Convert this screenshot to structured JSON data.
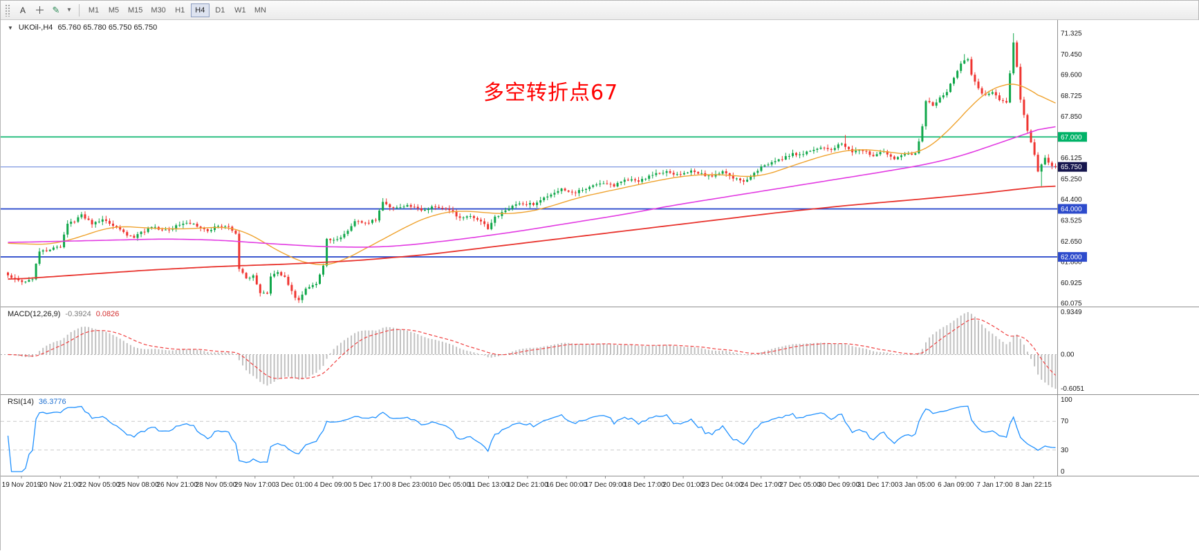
{
  "ui": {
    "toolbar": {
      "cursor_label": "A",
      "timeframes": [
        "M1",
        "M5",
        "M15",
        "M30",
        "H1",
        "H4",
        "D1",
        "W1",
        "MN"
      ],
      "active_timeframe": "H4"
    },
    "titles": {
      "arrow": "▼"
    }
  },
  "chart_data": [
    {
      "type": "candlestick",
      "title": "UKOil-,H4",
      "ohlc_display": "65.760 65.780 65.750 65.750",
      "annotation": {
        "text": "多空转折点67",
        "color": "#ff0000"
      },
      "ylim": [
        59.93,
        71.87
      ],
      "y_ticks": [
        "71.325",
        "70.450",
        "69.600",
        "68.725",
        "67.850",
        "67.000",
        "66.125",
        "65.250",
        "64.400",
        "63.525",
        "62.650",
        "61.800",
        "60.925",
        "60.075"
      ],
      "candle_count": 300,
      "up_color": "#10a74a",
      "down_color": "#ef3430",
      "price_path": [
        [
          0,
          61.35
        ],
        [
          2,
          61.15
        ],
        [
          5,
          60.95
        ],
        [
          8,
          61.1
        ],
        [
          10,
          62.25
        ],
        [
          13,
          62.3
        ],
        [
          16,
          62.45
        ],
        [
          18,
          63.35
        ],
        [
          20,
          63.5
        ],
        [
          22,
          63.75
        ],
        [
          25,
          63.4
        ],
        [
          28,
          63.55
        ],
        [
          31,
          63.3
        ],
        [
          34,
          63.0
        ],
        [
          37,
          62.8
        ],
        [
          39,
          63.0
        ],
        [
          42,
          63.25
        ],
        [
          46,
          63.1
        ],
        [
          49,
          63.3
        ],
        [
          52,
          63.45
        ],
        [
          55,
          63.3
        ],
        [
          58,
          63.1
        ],
        [
          61,
          63.3
        ],
        [
          64,
          63.25
        ],
        [
          66,
          63.0
        ],
        [
          67,
          61.5
        ],
        [
          69,
          61.1
        ],
        [
          71,
          61.25
        ],
        [
          73,
          60.5
        ],
        [
          75,
          60.45
        ],
        [
          76,
          61.2
        ],
        [
          78,
          61.35
        ],
        [
          80,
          61.15
        ],
        [
          83,
          60.3
        ],
        [
          84,
          60.2
        ],
        [
          86,
          60.7
        ],
        [
          89,
          60.9
        ],
        [
          91,
          61.6
        ],
        [
          92,
          62.75
        ],
        [
          95,
          62.7
        ],
        [
          97,
          62.95
        ],
        [
          100,
          63.5
        ],
        [
          103,
          63.4
        ],
        [
          106,
          63.55
        ],
        [
          108,
          64.3
        ],
        [
          111,
          64.0
        ],
        [
          115,
          64.15
        ],
        [
          119,
          63.95
        ],
        [
          123,
          64.1
        ],
        [
          127,
          63.95
        ],
        [
          130,
          63.6
        ],
        [
          133,
          63.7
        ],
        [
          136,
          63.45
        ],
        [
          138,
          63.2
        ],
        [
          140,
          63.65
        ],
        [
          144,
          64.05
        ],
        [
          147,
          64.25
        ],
        [
          151,
          64.2
        ],
        [
          155,
          64.55
        ],
        [
          159,
          64.8
        ],
        [
          163,
          64.7
        ],
        [
          167,
          64.9
        ],
        [
          171,
          65.05
        ],
        [
          174,
          64.95
        ],
        [
          177,
          65.25
        ],
        [
          181,
          65.15
        ],
        [
          185,
          65.45
        ],
        [
          189,
          65.55
        ],
        [
          193,
          65.4
        ],
        [
          196,
          65.6
        ],
        [
          199,
          65.45
        ],
        [
          202,
          65.35
        ],
        [
          205,
          65.55
        ],
        [
          208,
          65.3
        ],
        [
          211,
          65.15
        ],
        [
          213,
          65.35
        ],
        [
          216,
          65.75
        ],
        [
          219,
          65.9
        ],
        [
          222,
          66.1
        ],
        [
          225,
          66.3
        ],
        [
          228,
          66.25
        ],
        [
          230,
          66.45
        ],
        [
          233,
          66.55
        ],
        [
          236,
          66.45
        ],
        [
          239,
          66.75
        ],
        [
          242,
          66.35
        ],
        [
          245,
          66.45
        ],
        [
          248,
          66.2
        ],
        [
          251,
          66.4
        ],
        [
          254,
          66.1
        ],
        [
          257,
          66.25
        ],
        [
          260,
          66.3
        ],
        [
          262,
          67.4
        ],
        [
          263,
          68.5
        ],
        [
          265,
          68.35
        ],
        [
          267,
          68.6
        ],
        [
          269,
          68.9
        ],
        [
          271,
          69.5
        ],
        [
          273,
          70.1
        ],
        [
          275,
          70.2
        ],
        [
          276,
          69.6
        ],
        [
          278,
          69.0
        ],
        [
          280,
          68.7
        ],
        [
          282,
          68.9
        ],
        [
          284,
          68.5
        ],
        [
          286,
          68.4
        ],
        [
          288,
          70.9
        ],
        [
          289,
          69.9
        ],
        [
          290,
          68.6
        ],
        [
          292,
          67.3
        ],
        [
          294,
          66.3
        ],
        [
          295,
          65.6
        ],
        [
          297,
          66.1
        ],
        [
          298,
          65.9
        ],
        [
          300,
          65.75
        ]
      ],
      "forced_extremes": {
        "84": {
          "l": 60.08
        },
        "107": {
          "h": 64.45
        },
        "239": {
          "h": 67.08
        },
        "273": {
          "h": 70.45
        },
        "287": {
          "h": 71.32
        },
        "295": {
          "l": 64.95
        }
      },
      "moving_averages": [
        {
          "name": "fast-orange",
          "color": "#efa22d",
          "width": 1.4,
          "path": [
            [
              0,
              62.6
            ],
            [
              8,
              62.5
            ],
            [
              14,
              62.55
            ],
            [
              22,
              62.9
            ],
            [
              30,
              63.3
            ],
            [
              40,
              63.2
            ],
            [
              50,
              63.15
            ],
            [
              60,
              63.25
            ],
            [
              66,
              63.2
            ],
            [
              72,
              62.7
            ],
            [
              80,
              62.0
            ],
            [
              88,
              61.6
            ],
            [
              94,
              61.7
            ],
            [
              100,
              62.2
            ],
            [
              108,
              62.8
            ],
            [
              114,
              63.3
            ],
            [
              122,
              63.8
            ],
            [
              130,
              63.95
            ],
            [
              138,
              63.8
            ],
            [
              146,
              63.8
            ],
            [
              154,
              64.05
            ],
            [
              162,
              64.45
            ],
            [
              170,
              64.7
            ],
            [
              178,
              64.95
            ],
            [
              186,
              65.2
            ],
            [
              194,
              65.4
            ],
            [
              202,
              65.45
            ],
            [
              210,
              65.35
            ],
            [
              214,
              65.3
            ],
            [
              220,
              65.6
            ],
            [
              228,
              66.0
            ],
            [
              236,
              66.35
            ],
            [
              242,
              66.5
            ],
            [
              248,
              66.45
            ],
            [
              254,
              66.3
            ],
            [
              260,
              66.25
            ],
            [
              266,
              66.9
            ],
            [
              272,
              67.8
            ],
            [
              278,
              68.8
            ],
            [
              282,
              69.15
            ],
            [
              286,
              69.2
            ],
            [
              290,
              69.3
            ],
            [
              293,
              68.9
            ],
            [
              296,
              68.4
            ],
            [
              300,
              68.1
            ]
          ]
        },
        {
          "name": "medium-magenta",
          "color": "#e23ae2",
          "width": 1.6,
          "path": [
            [
              0,
              62.6
            ],
            [
              15,
              62.65
            ],
            [
              30,
              62.7
            ],
            [
              45,
              62.75
            ],
            [
              60,
              62.7
            ],
            [
              75,
              62.55
            ],
            [
              90,
              62.42
            ],
            [
              105,
              62.4
            ],
            [
              115,
              62.5
            ],
            [
              130,
              62.75
            ],
            [
              145,
              63.05
            ],
            [
              160,
              63.4
            ],
            [
              175,
              63.75
            ],
            [
              190,
              64.15
            ],
            [
              205,
              64.5
            ],
            [
              220,
              64.85
            ],
            [
              235,
              65.2
            ],
            [
              250,
              65.55
            ],
            [
              262,
              65.85
            ],
            [
              272,
              66.2
            ],
            [
              282,
              66.7
            ],
            [
              292,
              67.2
            ],
            [
              300,
              67.6
            ]
          ]
        },
        {
          "name": "slow-red",
          "color": "#e8322c",
          "width": 1.8,
          "path": [
            [
              0,
              61.05
            ],
            [
              20,
              61.25
            ],
            [
              40,
              61.45
            ],
            [
              60,
              61.6
            ],
            [
              80,
              61.7
            ],
            [
              100,
              61.85
            ],
            [
              120,
              62.1
            ],
            [
              140,
              62.45
            ],
            [
              160,
              62.8
            ],
            [
              180,
              63.15
            ],
            [
              200,
              63.5
            ],
            [
              220,
              63.85
            ],
            [
              240,
              64.15
            ],
            [
              260,
              64.4
            ],
            [
              275,
              64.6
            ],
            [
              290,
              64.85
            ],
            [
              300,
              65.0
            ]
          ]
        }
      ],
      "horizontal_lines": [
        {
          "price": 67.0,
          "label": "67.000",
          "line_color": "#00b267",
          "badge_color": "#00b267",
          "width": 1.6
        },
        {
          "price": 65.75,
          "label": "65.750",
          "line_color": "#5b7dd8",
          "badge_color": "#16164e",
          "width": 1
        },
        {
          "price": 64.0,
          "label": "64.000",
          "line_color": "#2d4bcc",
          "badge_color": "#2d4bcc",
          "width": 1.8
        },
        {
          "price": 62.0,
          "label": "62.000",
          "line_color": "#2d4bcc",
          "badge_color": "#2d4bcc",
          "width": 1.8
        }
      ],
      "x_labels": [
        "19 Nov 2019",
        "20 Nov 21:00",
        "22 Nov 05:00",
        "25 Nov 08:00",
        "26 Nov 21:00",
        "28 Nov 05:00",
        "29 Nov 17:00",
        "3 Dec 01:00",
        "4 Dec 09:00",
        "5 Dec 17:00",
        "8 Dec 23:00",
        "10 Dec 05:00",
        "11 Dec 13:00",
        "12 Dec 21:00",
        "16 Dec 00:00",
        "17 Dec 09:00",
        "18 Dec 17:00",
        "20 Dec 01:00",
        "23 Dec 04:00",
        "24 Dec 17:00",
        "27 Dec 05:00",
        "30 Dec 09:00",
        "31 Dec 17:00",
        "3 Jan 05:00",
        "6 Jan 09:00",
        "7 Jan 17:00",
        "8 Jan 22:15"
      ]
    },
    {
      "type": "macd",
      "title": "MACD(12,26,9)",
      "params": [
        12,
        26,
        9
      ],
      "display_values": [
        "-0.3924",
        "0.0826"
      ],
      "scale_labels": [
        "0.9349",
        "0.00",
        "-0.6051"
      ],
      "histogram_color": "#c0c0c0",
      "signal_color": "#f04040"
    },
    {
      "type": "line",
      "title": "RSI(14)",
      "period": 14,
      "display_value": "36.3776",
      "scale_labels": [
        "100",
        "70",
        "30",
        "0"
      ],
      "levels": [
        70,
        30
      ],
      "color": "#1E90FF"
    }
  ]
}
